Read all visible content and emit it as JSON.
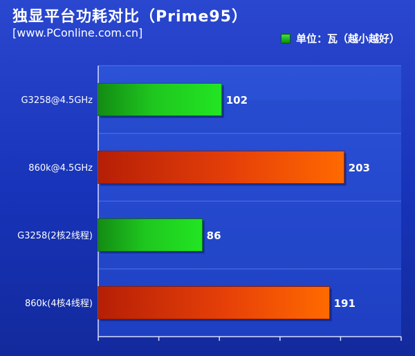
{
  "title": "独显平台功耗对比（Prime95）",
  "source": "[www.PConline.com.cn]",
  "legend_label": "单位：瓦（越小越好）",
  "colors": {
    "green": "#1ed11e",
    "orange": "#e23a06",
    "background": "#1c38c4"
  },
  "chart_data": {
    "type": "bar",
    "orientation": "horizontal",
    "categories": [
      "G3258@4.5GHz",
      "860k@4.5GHz",
      "G3258(2核2线程)",
      "860k(4核4线程)"
    ],
    "values": [
      102,
      203,
      86,
      191
    ],
    "bar_colors": [
      "green",
      "orange",
      "green",
      "orange"
    ],
    "xlim": [
      0,
      250
    ],
    "grid": true
  }
}
